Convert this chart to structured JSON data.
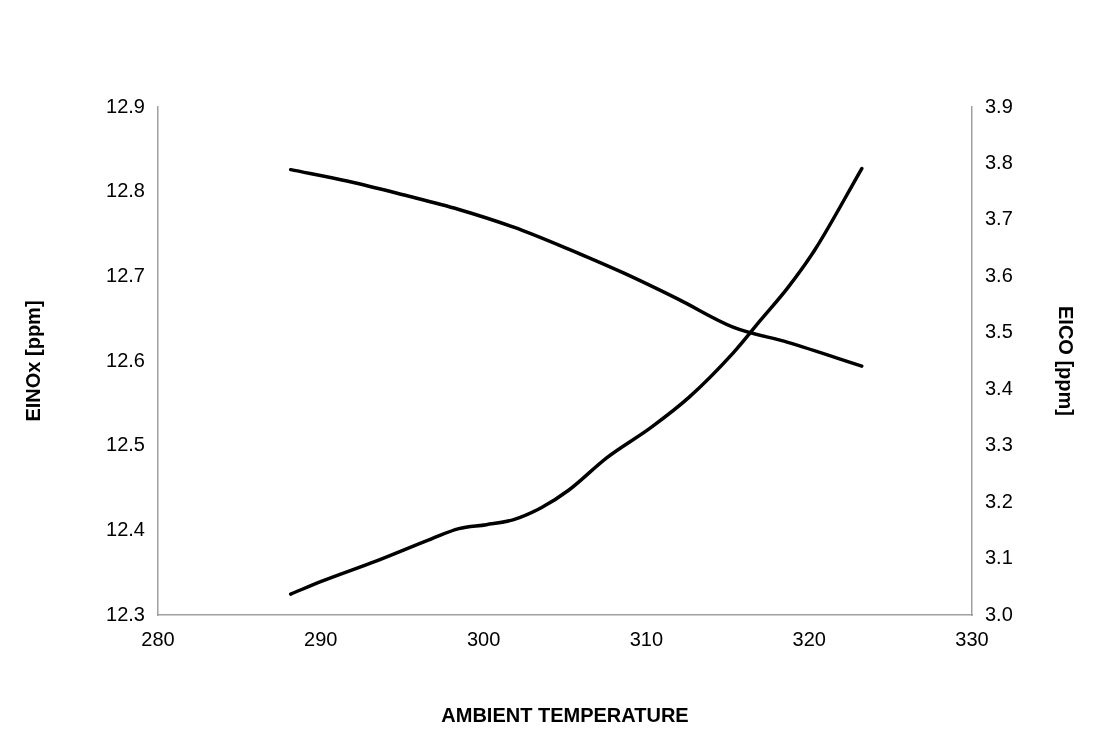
{
  "chart_data": {
    "type": "line",
    "xlabel": "AMBIENT TEMPERATURE",
    "ylabel": "EINOx [ppm]",
    "y2label": "EICO [ppm]",
    "xlim": [
      280,
      330
    ],
    "xticks": [
      280,
      290,
      300,
      310,
      320,
      330
    ],
    "ylim": [
      12.3,
      12.9
    ],
    "yticks": [
      12.3,
      12.4,
      12.5,
      12.6,
      12.7,
      12.8,
      12.9
    ],
    "y2lim": [
      3,
      3.9
    ],
    "y2ticks": [
      {
        "value": 3,
        "label": "3.0"
      },
      3.1,
      3.2,
      3.3,
      3.4,
      3.5,
      3.6,
      3.7,
      3.8,
      3.9
    ],
    "grid": false,
    "legend": false,
    "marker": "none",
    "line_style": "solid",
    "series": [
      {
        "color": "#000000",
        "x": [
          288.15,
          291.75,
          295.12,
          298.48,
          301.85,
          305.22,
          308.59,
          311.95,
          315.32,
          318.69,
          323.23
        ],
        "values": [
          12.826,
          12.812,
          12.796,
          12.779,
          12.758,
          12.732,
          12.704,
          12.673,
          12.64,
          12.622,
          12.594
        ]
      },
      {
        "color": "#000000",
        "axis": "y2",
        "x": [
          288.15,
          290.07,
          293.43,
          296.8,
          298.48,
          300.17,
          301.85,
          303.54,
          305.22,
          307.58,
          310.27,
          312.63,
          315.32,
          317.0,
          318.69,
          320.37,
          323.23
        ],
        "values": [
          3.037,
          3.06,
          3.096,
          3.135,
          3.153,
          3.16,
          3.169,
          3.19,
          3.221,
          3.279,
          3.332,
          3.386,
          3.464,
          3.522,
          3.58,
          3.648,
          3.791
        ]
      }
    ]
  }
}
